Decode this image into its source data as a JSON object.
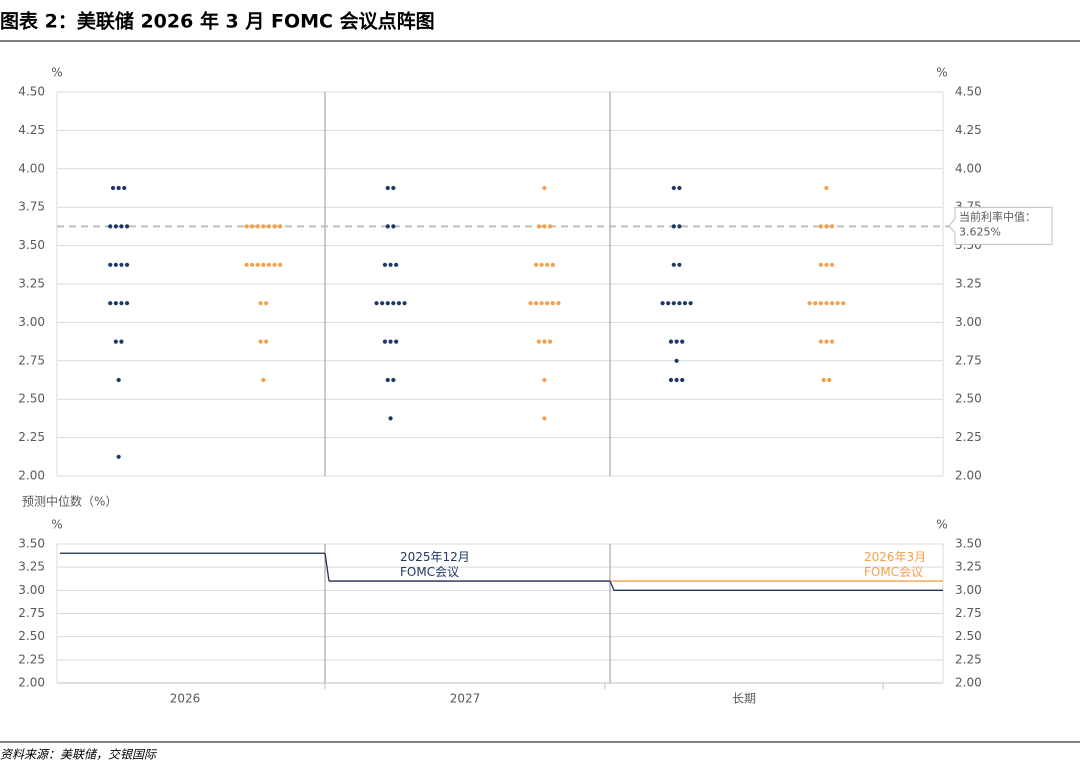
{
  "title": "图表 2：美联储 2026 年 3 月 FOMC 会议点阵图",
  "source": "资料来源：美联储，交银国际",
  "chart_data": [
    {
      "type": "dot",
      "y_unit": "%",
      "grid": true,
      "ylim": [
        2,
        4.5
      ],
      "yticks": [
        {
          "value": 2,
          "label": "2.00"
        },
        {
          "value": 2.25,
          "label": "2.25"
        },
        {
          "value": 2.5,
          "label": "2.50"
        },
        {
          "value": 2.75,
          "label": "2.75"
        },
        {
          "value": 3,
          "label": "3.00"
        },
        {
          "value": 3.25,
          "label": "3.25"
        },
        {
          "value": 3.5,
          "label": "3.50"
        },
        {
          "value": 3.75,
          "label": "3.75"
        },
        {
          "value": 4,
          "label": "4.00"
        },
        {
          "value": 4.25,
          "label": "4.25"
        },
        {
          "value": 4.5,
          "label": "4.50"
        }
      ],
      "reference_line": {
        "value": 3.625,
        "label": "当前利率中值：3.625%"
      },
      "series": [
        {
          "color": "#1f3864",
          "values": [
            [
              3.875,
              3.875,
              3.875,
              3.625,
              3.625,
              3.625,
              3.625,
              3.375,
              3.375,
              3.375,
              3.375,
              3.125,
              3.125,
              3.125,
              3.125,
              2.875,
              2.875,
              2.625,
              2.125
            ],
            [
              3.875,
              3.875,
              3.625,
              3.625,
              3.375,
              3.375,
              3.375,
              3.125,
              3.125,
              3.125,
              3.125,
              3.125,
              3.125,
              2.875,
              2.875,
              2.875,
              2.625,
              2.625,
              2.375
            ],
            [
              3.875,
              3.875,
              3.625,
              3.625,
              3.375,
              3.375,
              3.125,
              3.125,
              3.125,
              3.125,
              3.125,
              3.125,
              2.875,
              2.875,
              2.875,
              2.75,
              2.625,
              2.625,
              2.625
            ]
          ]
        },
        {
          "color": "#f4a04a",
          "values": [
            [
              3.625,
              3.625,
              3.625,
              3.625,
              3.625,
              3.625,
              3.625,
              3.375,
              3.375,
              3.375,
              3.375,
              3.375,
              3.375,
              3.375,
              3.125,
              3.125,
              2.875,
              2.875,
              2.625
            ],
            [
              3.875,
              3.625,
              3.625,
              3.625,
              3.375,
              3.375,
              3.375,
              3.375,
              3.125,
              3.125,
              3.125,
              3.125,
              3.125,
              3.125,
              2.875,
              2.875,
              2.875,
              2.625,
              2.375
            ],
            [
              3.875,
              3.625,
              3.625,
              3.625,
              3.375,
              3.375,
              3.375,
              3.125,
              3.125,
              3.125,
              3.125,
              3.125,
              3.125,
              3.125,
              2.875,
              2.875,
              2.875,
              2.625,
              2.625
            ]
          ]
        }
      ]
    },
    {
      "type": "line",
      "subtitle": "预测中位数（%）",
      "y_unit": "%",
      "grid": true,
      "categories": [
        "2026",
        "2027",
        "长期"
      ],
      "ylim": [
        2,
        3.5
      ],
      "yticks": [
        {
          "value": 2,
          "label": "2.00"
        },
        {
          "value": 2.25,
          "label": "2.25"
        },
        {
          "value": 2.5,
          "label": "2.50"
        },
        {
          "value": 2.75,
          "label": "2.75"
        },
        {
          "value": 3,
          "label": "3.00"
        },
        {
          "value": 3.25,
          "label": "3.25"
        },
        {
          "value": 3.5,
          "label": "3.50"
        }
      ],
      "series": [
        {
          "name": "2025年12月 FOMC会议",
          "color": "#1f3864",
          "values": [
            3.4,
            3.1,
            3.0
          ]
        },
        {
          "name": "2026年3月 FOMC会议",
          "color": "#f4a04a",
          "values": [
            3.4,
            3.1,
            3.1
          ]
        }
      ]
    }
  ]
}
